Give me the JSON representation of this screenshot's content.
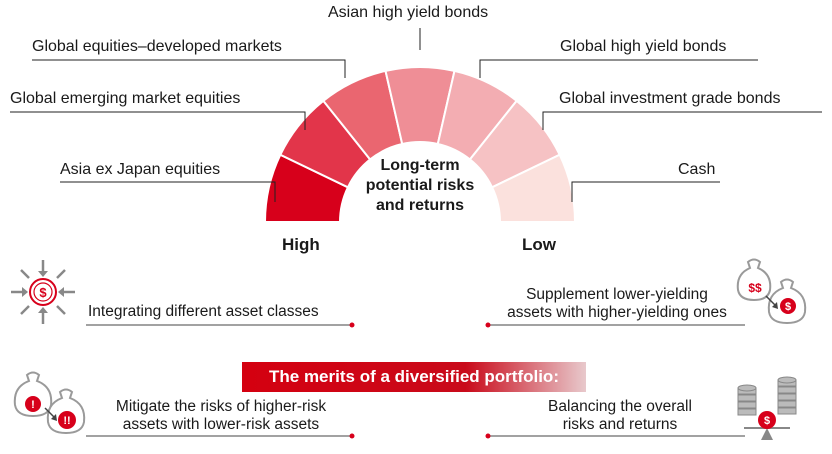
{
  "gauge": {
    "segments": [
      {
        "label": "Asia ex Japan equities",
        "color": "#d7001b"
      },
      {
        "label": "Global emerging market equities",
        "color": "#e2354a"
      },
      {
        "label": "Global equities–developed markets",
        "color": "#ea6670"
      },
      {
        "label": "Asian high yield bonds",
        "color": "#ef8e96"
      },
      {
        "label": "Global high yield bonds",
        "color": "#f3adb2"
      },
      {
        "label": "Global investment grade bonds",
        "color": "#f6c2c4"
      },
      {
        "label": "Cash",
        "color": "#fbe1dd"
      }
    ],
    "center_lines": [
      "Long-term",
      "potential risks",
      "and returns"
    ],
    "high_label": "High",
    "low_label": "Low"
  },
  "banner": "The merits of a diversified portfolio:",
  "merits": {
    "integrating": "Integrating different asset classes",
    "supplement": [
      "Supplement lower-yielding",
      "assets with higher-yielding ones"
    ],
    "mitigate": [
      "Mitigate the risks of higher-risk",
      "assets with lower-risk assets"
    ],
    "balancing": [
      "Balancing the overall",
      "risks and returns"
    ]
  },
  "colors": {
    "accent": "#d7001b",
    "line": "#333333"
  }
}
